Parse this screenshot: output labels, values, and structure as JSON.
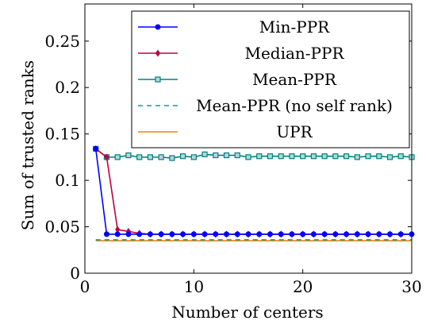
{
  "chart_data": {
    "type": "line",
    "xlabel": "Number of centers",
    "ylabel": "Sum of trusted ranks",
    "xlim": [
      0,
      30
    ],
    "ylim": [
      0,
      0.29
    ],
    "xticks": [
      0,
      10,
      20,
      30
    ],
    "yticks": [
      0,
      0.05,
      0.1,
      0.15,
      0.2,
      0.25
    ],
    "ytick_labels": [
      "0",
      "0.05",
      "0.1",
      "0.15",
      "0.2",
      "0.25"
    ],
    "grid": false,
    "legend_position": "top-right",
    "x": [
      1,
      2,
      3,
      4,
      5,
      6,
      7,
      8,
      9,
      10,
      11,
      12,
      13,
      14,
      15,
      16,
      17,
      18,
      19,
      20,
      21,
      22,
      23,
      24,
      25,
      26,
      27,
      28,
      29,
      30
    ],
    "series": [
      {
        "name": "Min-PPR",
        "color": "#0000ff",
        "marker": "circle",
        "style": "solid",
        "values": [
          0.134,
          0.042,
          0.042,
          0.042,
          0.042,
          0.042,
          0.042,
          0.042,
          0.042,
          0.042,
          0.042,
          0.042,
          0.042,
          0.042,
          0.042,
          0.042,
          0.042,
          0.042,
          0.042,
          0.042,
          0.042,
          0.042,
          0.042,
          0.042,
          0.042,
          0.042,
          0.042,
          0.042,
          0.042,
          0.042
        ]
      },
      {
        "name": "Median-PPR",
        "color": "#bf0040",
        "marker": "diamond",
        "style": "solid",
        "values": [
          0.134,
          0.125,
          0.047,
          0.045,
          0.043,
          0.042,
          0.042,
          0.042,
          0.042,
          0.042,
          0.042,
          0.042,
          0.042,
          0.042,
          0.042,
          0.042,
          0.042,
          0.042,
          0.042,
          0.042,
          0.042,
          0.042,
          0.042,
          0.042,
          0.042,
          0.042,
          0.042,
          0.042,
          0.042,
          0.042
        ]
      },
      {
        "name": "Mean-PPR",
        "color": "#008080",
        "marker": "square",
        "style": "solid",
        "values": [
          0.134,
          0.125,
          0.125,
          0.127,
          0.125,
          0.125,
          0.125,
          0.124,
          0.126,
          0.125,
          0.128,
          0.127,
          0.127,
          0.127,
          0.125,
          0.126,
          0.126,
          0.126,
          0.126,
          0.126,
          0.126,
          0.126,
          0.126,
          0.126,
          0.125,
          0.126,
          0.126,
          0.125,
          0.126,
          0.125
        ]
      },
      {
        "name": "Mean-PPR (no self rank)",
        "color": "#00a0a0",
        "marker": "none",
        "style": "dashed",
        "values": [
          0.036,
          0.036,
          0.036,
          0.036,
          0.036,
          0.036,
          0.036,
          0.036,
          0.036,
          0.036,
          0.036,
          0.036,
          0.036,
          0.036,
          0.036,
          0.036,
          0.036,
          0.036,
          0.036,
          0.036,
          0.036,
          0.036,
          0.036,
          0.036,
          0.036,
          0.036,
          0.036,
          0.036,
          0.036,
          0.036
        ]
      },
      {
        "name": "UPR",
        "color": "#ff8000",
        "marker": "none",
        "style": "solid",
        "values": [
          0.035,
          0.035,
          0.035,
          0.035,
          0.035,
          0.035,
          0.035,
          0.035,
          0.035,
          0.035,
          0.035,
          0.035,
          0.035,
          0.035,
          0.035,
          0.035,
          0.035,
          0.035,
          0.035,
          0.035,
          0.035,
          0.035,
          0.035,
          0.035,
          0.035,
          0.035,
          0.035,
          0.035,
          0.035,
          0.035
        ]
      }
    ]
  }
}
